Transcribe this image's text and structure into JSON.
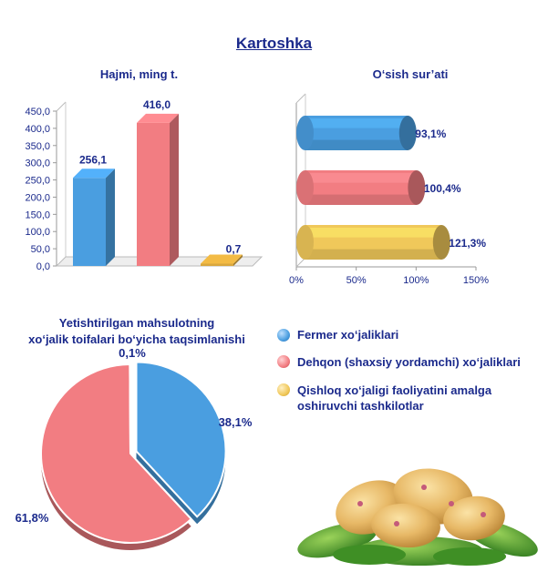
{
  "title": "Kartoshka",
  "charts": {
    "volume": {
      "title": "Hajmi, ming t."
    },
    "growth": {
      "title": "O‘sish sur’ati"
    },
    "share": {
      "title_line1": "Yetishtirilgan mahsulotning",
      "title_line2": "xo‘jalik toifalari bo‘yicha taqsimlanishi"
    }
  },
  "legend": [
    {
      "label": "Fermer xo‘jaliklari",
      "color": "#4a9ee0"
    },
    {
      "label": "Dehqon (shaxsiy yordamchi) xo‘jaliklari",
      "color": "#f27d82"
    },
    {
      "label": "Qishloq xo‘jaligi faoliyatini amalga oshiruvchi tashkilotlar",
      "color": "#f0c85a"
    }
  ],
  "image": {
    "icon": "potatoes-on-leaves-image"
  },
  "chart_data": [
    {
      "type": "bar",
      "title": "Hajmi, ming t.",
      "categories": [
        "Fermer xo‘jaliklari",
        "Dehqon (shaxsiy yordamchi) xo‘jaliklari",
        "Qishloq xo‘jaligi faoliyatini amalga oshiruvchi tashkilotlar"
      ],
      "values": [
        256.1,
        416.0,
        0.7
      ],
      "value_labels": [
        "256,1",
        "416,0",
        "0,7"
      ],
      "ylim": [
        0,
        450
      ],
      "yticks": [
        "0,0",
        "50,0",
        "100,0",
        "150,0",
        "200,0",
        "250,0",
        "300,0",
        "350,0",
        "400,0",
        "450,0"
      ],
      "colors": [
        "#4a9ee0",
        "#f27d82",
        "#d9a73e"
      ]
    },
    {
      "type": "bar",
      "orientation": "horizontal",
      "title": "O‘sish sur’ati",
      "categories": [
        "Fermer xo‘jaliklari",
        "Dehqon (shaxsiy yordamchi) xo‘jaliklari",
        "Qishloq xo‘jaligi faoliyatini amalga oshiruvchi tashkilotlar"
      ],
      "values": [
        93.1,
        100.4,
        121.3
      ],
      "value_labels": [
        "93,1%",
        "100,4%",
        "121,3%"
      ],
      "xlim": [
        0,
        150
      ],
      "xticks": [
        "0%",
        "50%",
        "100%",
        "150%"
      ],
      "colors": [
        "#4a9ee0",
        "#f27d82",
        "#f0c85a"
      ]
    },
    {
      "type": "pie",
      "title": "Yetishtirilgan mahsulotning xo‘jalik toifalari bo‘yicha taqsimlanishi",
      "categories": [
        "Fermer xo‘jaliklari",
        "Dehqon (shaxsiy yordamchi) xo‘jaliklari",
        "Qishloq xo‘jaligi faoliyatini amalga oshiruvchi tashkilotlar"
      ],
      "values": [
        38.1,
        61.8,
        0.1
      ],
      "value_labels": [
        "38,1%",
        "61,8%",
        "0,1%"
      ],
      "colors": [
        "#4a9ee0",
        "#f27d82",
        "#9acd4c"
      ]
    }
  ]
}
